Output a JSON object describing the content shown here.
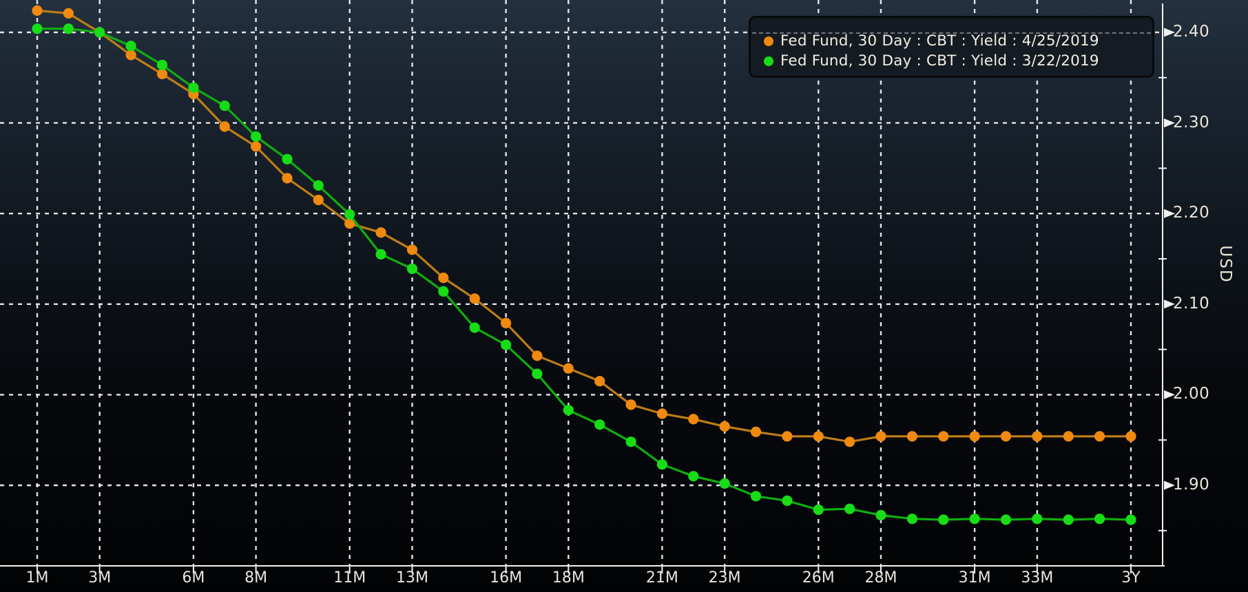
{
  "window": {
    "kind": "terminal-futures-yield-chart"
  },
  "legend": {
    "position": "top-right",
    "items": [
      {
        "label": "Fed Fund, 30 Day : CBT : Yield : 4/25/2019",
        "color": "#f0890f"
      },
      {
        "label": "Fed Fund, 30 Day : CBT : Yield : 3/22/2019",
        "color": "#17dd17"
      }
    ]
  },
  "axes": {
    "y_axis_label": "USD",
    "y_axis_side": "right",
    "x_axis_side": "bottom"
  },
  "chart_data": {
    "type": "line",
    "title": "",
    "xlabel": "",
    "ylabel": "USD",
    "x_unit": "months-to-expiry",
    "grid": "dashed-white",
    "legend_position": "top-right",
    "ylim": [
      1.81,
      2.44
    ],
    "xlim_months": [
      1,
      36
    ],
    "months": [
      1,
      2,
      3,
      4,
      5,
      6,
      7,
      8,
      9,
      10,
      11,
      12,
      13,
      14,
      15,
      16,
      17,
      18,
      19,
      20,
      21,
      22,
      23,
      24,
      25,
      26,
      27,
      28,
      29,
      30,
      31,
      32,
      33,
      34,
      35,
      36
    ],
    "series": [
      {
        "name": "Fed Fund, 30 Day : CBT : Yield : 4/25/2019",
        "date": "4/25/2019",
        "color": "#f0890f",
        "line_color": "#bd7d16",
        "values": [
          2.424,
          2.421,
          2.4,
          2.375,
          2.354,
          2.332,
          2.296,
          2.274,
          2.239,
          2.215,
          2.189,
          2.179,
          2.16,
          2.129,
          2.106,
          2.079,
          2.043,
          2.029,
          2.015,
          1.989,
          1.979,
          1.973,
          1.965,
          1.959,
          1.954,
          1.954,
          1.948,
          1.954,
          1.954,
          1.954,
          1.954,
          1.954,
          1.954,
          1.954,
          1.954,
          1.954
        ]
      },
      {
        "name": "Fed Fund, 30 Day : CBT : Yield : 3/22/2019",
        "date": "3/22/2019",
        "color": "#17dd17",
        "line_color": "#0fae0f",
        "values": [
          2.404,
          2.404,
          2.4,
          2.385,
          2.364,
          2.339,
          2.319,
          2.285,
          2.26,
          2.231,
          2.199,
          2.155,
          2.139,
          2.114,
          2.074,
          2.055,
          2.023,
          1.983,
          1.967,
          1.948,
          1.923,
          1.91,
          1.902,
          1.888,
          1.883,
          1.873,
          1.874,
          1.867,
          1.863,
          1.862,
          1.863,
          1.862,
          1.863,
          1.862,
          1.863,
          1.862
        ]
      }
    ],
    "x_ticks": [
      {
        "month": 1,
        "label": "1M"
      },
      {
        "month": 3,
        "label": "3M"
      },
      {
        "month": 6,
        "label": "6M"
      },
      {
        "month": 8,
        "label": "8M"
      },
      {
        "month": 11,
        "label": "11M"
      },
      {
        "month": 13,
        "label": "13M"
      },
      {
        "month": 16,
        "label": "16M"
      },
      {
        "month": 18,
        "label": "18M"
      },
      {
        "month": 21,
        "label": "21M"
      },
      {
        "month": 23,
        "label": "23M"
      },
      {
        "month": 26,
        "label": "26M"
      },
      {
        "month": 28,
        "label": "28M"
      },
      {
        "month": 31,
        "label": "31M"
      },
      {
        "month": 33,
        "label": "33M"
      },
      {
        "month": 36,
        "label": "3Y"
      }
    ],
    "y_ticks_major": [
      {
        "value": 2.4,
        "label": "2.40"
      },
      {
        "value": 2.3,
        "label": "2.30"
      },
      {
        "value": 2.2,
        "label": "2.20"
      },
      {
        "value": 2.1,
        "label": "2.10"
      },
      {
        "value": 2.0,
        "label": "2.00"
      },
      {
        "value": 1.9,
        "label": "1.90"
      }
    ],
    "y_ticks_minor": [
      2.35,
      2.25,
      2.15,
      2.05,
      1.95,
      1.85
    ]
  }
}
